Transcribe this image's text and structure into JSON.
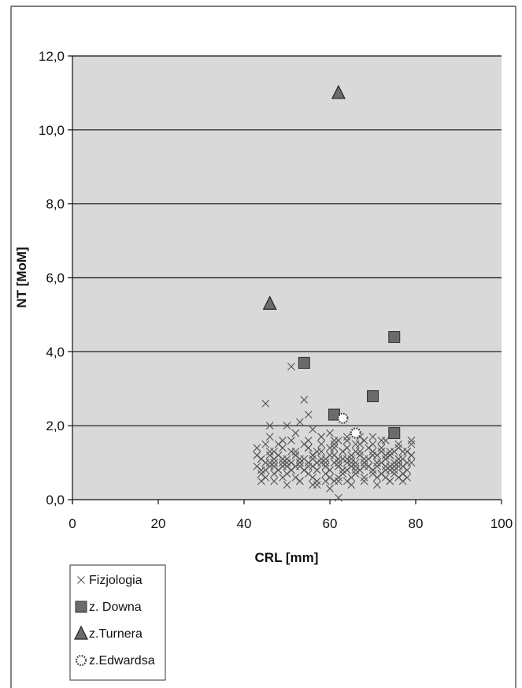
{
  "chart_data": {
    "type": "scatter",
    "title": "",
    "xlabel": "CRL [mm]",
    "ylabel": "NT [MoM]",
    "xlim": [
      0,
      100
    ],
    "ylim": [
      0,
      12
    ],
    "x_ticks": [
      0,
      20,
      40,
      60,
      80,
      100
    ],
    "y_ticks": [
      0,
      2,
      4,
      6,
      8,
      10,
      12
    ],
    "x_tick_labels": [
      "0",
      "20",
      "40",
      "60",
      "80",
      "100"
    ],
    "y_tick_labels": [
      "0,0",
      "2,0",
      "4,0",
      "6,0",
      "8,0",
      "10,0",
      "12,0"
    ],
    "grid": "horizontal",
    "legend_position": "bottom-left",
    "plot_background": "#d9d9d9",
    "series": [
      {
        "name": "Fizjologia",
        "marker": "x",
        "color": "#555555",
        "x": [
          45,
          46,
          50,
          51,
          53,
          54,
          55,
          56,
          58,
          60,
          62,
          64,
          66,
          68,
          70,
          72,
          74,
          76,
          78,
          79,
          43,
          44,
          46,
          47,
          48,
          49,
          50,
          51,
          52,
          53,
          54,
          55,
          56,
          57,
          58,
          59,
          60,
          61,
          62,
          63,
          64,
          65,
          66,
          67,
          68,
          69,
          70,
          71,
          72,
          73,
          74,
          75,
          76,
          77,
          78,
          79,
          43,
          44,
          45,
          46,
          47,
          48,
          49,
          50,
          51,
          52,
          53,
          54,
          55,
          56,
          57,
          58,
          59,
          60,
          61,
          62,
          63,
          64,
          65,
          66,
          67,
          68,
          69,
          70,
          71,
          72,
          73,
          74,
          75,
          76,
          77,
          78,
          79,
          44,
          45,
          47,
          49,
          50,
          52,
          53,
          55,
          56,
          57,
          59,
          60,
          61,
          62,
          63,
          64,
          65,
          66,
          68,
          70,
          71,
          72,
          73,
          74,
          75,
          76,
          77,
          78,
          43,
          45,
          46,
          48,
          49,
          51,
          52,
          54,
          55,
          57,
          58,
          60,
          61,
          63,
          64,
          66,
          67,
          69,
          70,
          72,
          73,
          75,
          76,
          78,
          79,
          44,
          46,
          47,
          49,
          51,
          52,
          53,
          55,
          56,
          58,
          59,
          61,
          62,
          64,
          65,
          67,
          68,
          69,
          71,
          72,
          73,
          74,
          76,
          77,
          45,
          47,
          48,
          50,
          51,
          53,
          54,
          56,
          57,
          59,
          60,
          62,
          63,
          65,
          66,
          68,
          70,
          71,
          73,
          74,
          75,
          77,
          44,
          47,
          50,
          53,
          56,
          59,
          62,
          65,
          68,
          71,
          74,
          77,
          46,
          49,
          52,
          55,
          58,
          61,
          64,
          67,
          70,
          73,
          76,
          79,
          62,
          60,
          57
        ],
        "y": [
          2.6,
          2.0,
          2.0,
          3.6,
          2.1,
          2.7,
          2.3,
          1.9,
          1.7,
          1.8,
          1.6,
          1.7,
          1.5,
          1.6,
          1.7,
          1.6,
          1.3,
          1.1,
          1.3,
          1.6,
          1.2,
          1.1,
          1.0,
          1.3,
          1.2,
          1.0,
          1.1,
          1.3,
          1.2,
          1.0,
          1.1,
          1.4,
          1.2,
          1.0,
          1.3,
          1.1,
          1.2,
          1.4,
          1.0,
          1.3,
          1.1,
          1.2,
          1.0,
          1.3,
          1.1,
          0.9,
          1.2,
          1.0,
          1.3,
          1.1,
          1.2,
          0.9,
          1.1,
          1.3,
          1.0,
          1.2,
          0.9,
          0.8,
          1.0,
          0.9,
          1.1,
          0.8,
          0.9,
          1.0,
          0.8,
          0.9,
          1.0,
          0.8,
          0.9,
          1.1,
          0.8,
          1.0,
          0.9,
          0.8,
          1.0,
          0.9,
          1.1,
          0.8,
          1.0,
          0.9,
          0.8,
          1.0,
          0.9,
          0.8,
          1.0,
          0.7,
          0.9,
          0.8,
          1.0,
          0.9,
          0.7,
          0.8,
          1.0,
          0.7,
          0.6,
          0.7,
          0.6,
          0.7,
          0.6,
          0.5,
          0.7,
          0.6,
          0.5,
          0.7,
          0.6,
          0.5,
          0.6,
          0.7,
          0.5,
          0.6,
          0.7,
          0.6,
          0.7,
          0.6,
          0.7,
          0.6,
          0.5,
          0.7,
          0.6,
          0.7,
          0.6,
          1.4,
          1.5,
          1.3,
          1.5,
          1.4,
          1.6,
          1.3,
          1.5,
          1.4,
          1.3,
          1.5,
          1.4,
          1.6,
          1.3,
          1.4,
          1.3,
          1.5,
          1.4,
          1.3,
          1.4,
          1.2,
          1.3,
          1.4,
          1.3,
          1.2,
          1.1,
          1.2,
          1.0,
          1.1,
          1.0,
          1.2,
          1.1,
          1.0,
          1.2,
          1.1,
          1.0,
          1.2,
          1.1,
          1.0,
          1.1,
          1.2,
          1.0,
          1.1,
          1.2,
          1.0,
          1.1,
          1.2,
          1.0,
          1.1,
          0.8,
          0.9,
          0.8,
          0.9,
          0.8,
          0.9,
          0.8,
          0.9,
          0.8,
          0.9,
          0.8,
          0.9,
          0.8,
          0.9,
          0.8,
          0.9,
          0.8,
          0.9,
          0.8,
          0.9,
          0.8,
          0.9,
          0.5,
          0.5,
          0.4,
          0.5,
          0.4,
          0.5,
          0.5,
          0.4,
          0.5,
          0.4,
          0.5,
          0.5,
          1.7,
          1.6,
          1.8,
          1.6,
          1.7,
          1.5,
          1.6,
          1.7,
          1.5,
          1.6,
          1.5,
          1.5,
          0.05,
          0.3,
          0.4
        ]
      },
      {
        "name": "z. Downa",
        "marker": "square",
        "color": "#6b6b6b",
        "x": [
          54,
          61,
          70,
          75,
          75
        ],
        "y": [
          3.7,
          2.3,
          2.8,
          4.4,
          1.8
        ]
      },
      {
        "name": "z.Turnera",
        "marker": "triangle",
        "color": "#6b6b6b",
        "x": [
          46,
          62
        ],
        "y": [
          5.3,
          11.0
        ]
      },
      {
        "name": "z.Edwardsa",
        "marker": "dotted-circle",
        "color": "#333333",
        "x": [
          63,
          66
        ],
        "y": [
          2.2,
          1.8
        ]
      }
    ]
  }
}
